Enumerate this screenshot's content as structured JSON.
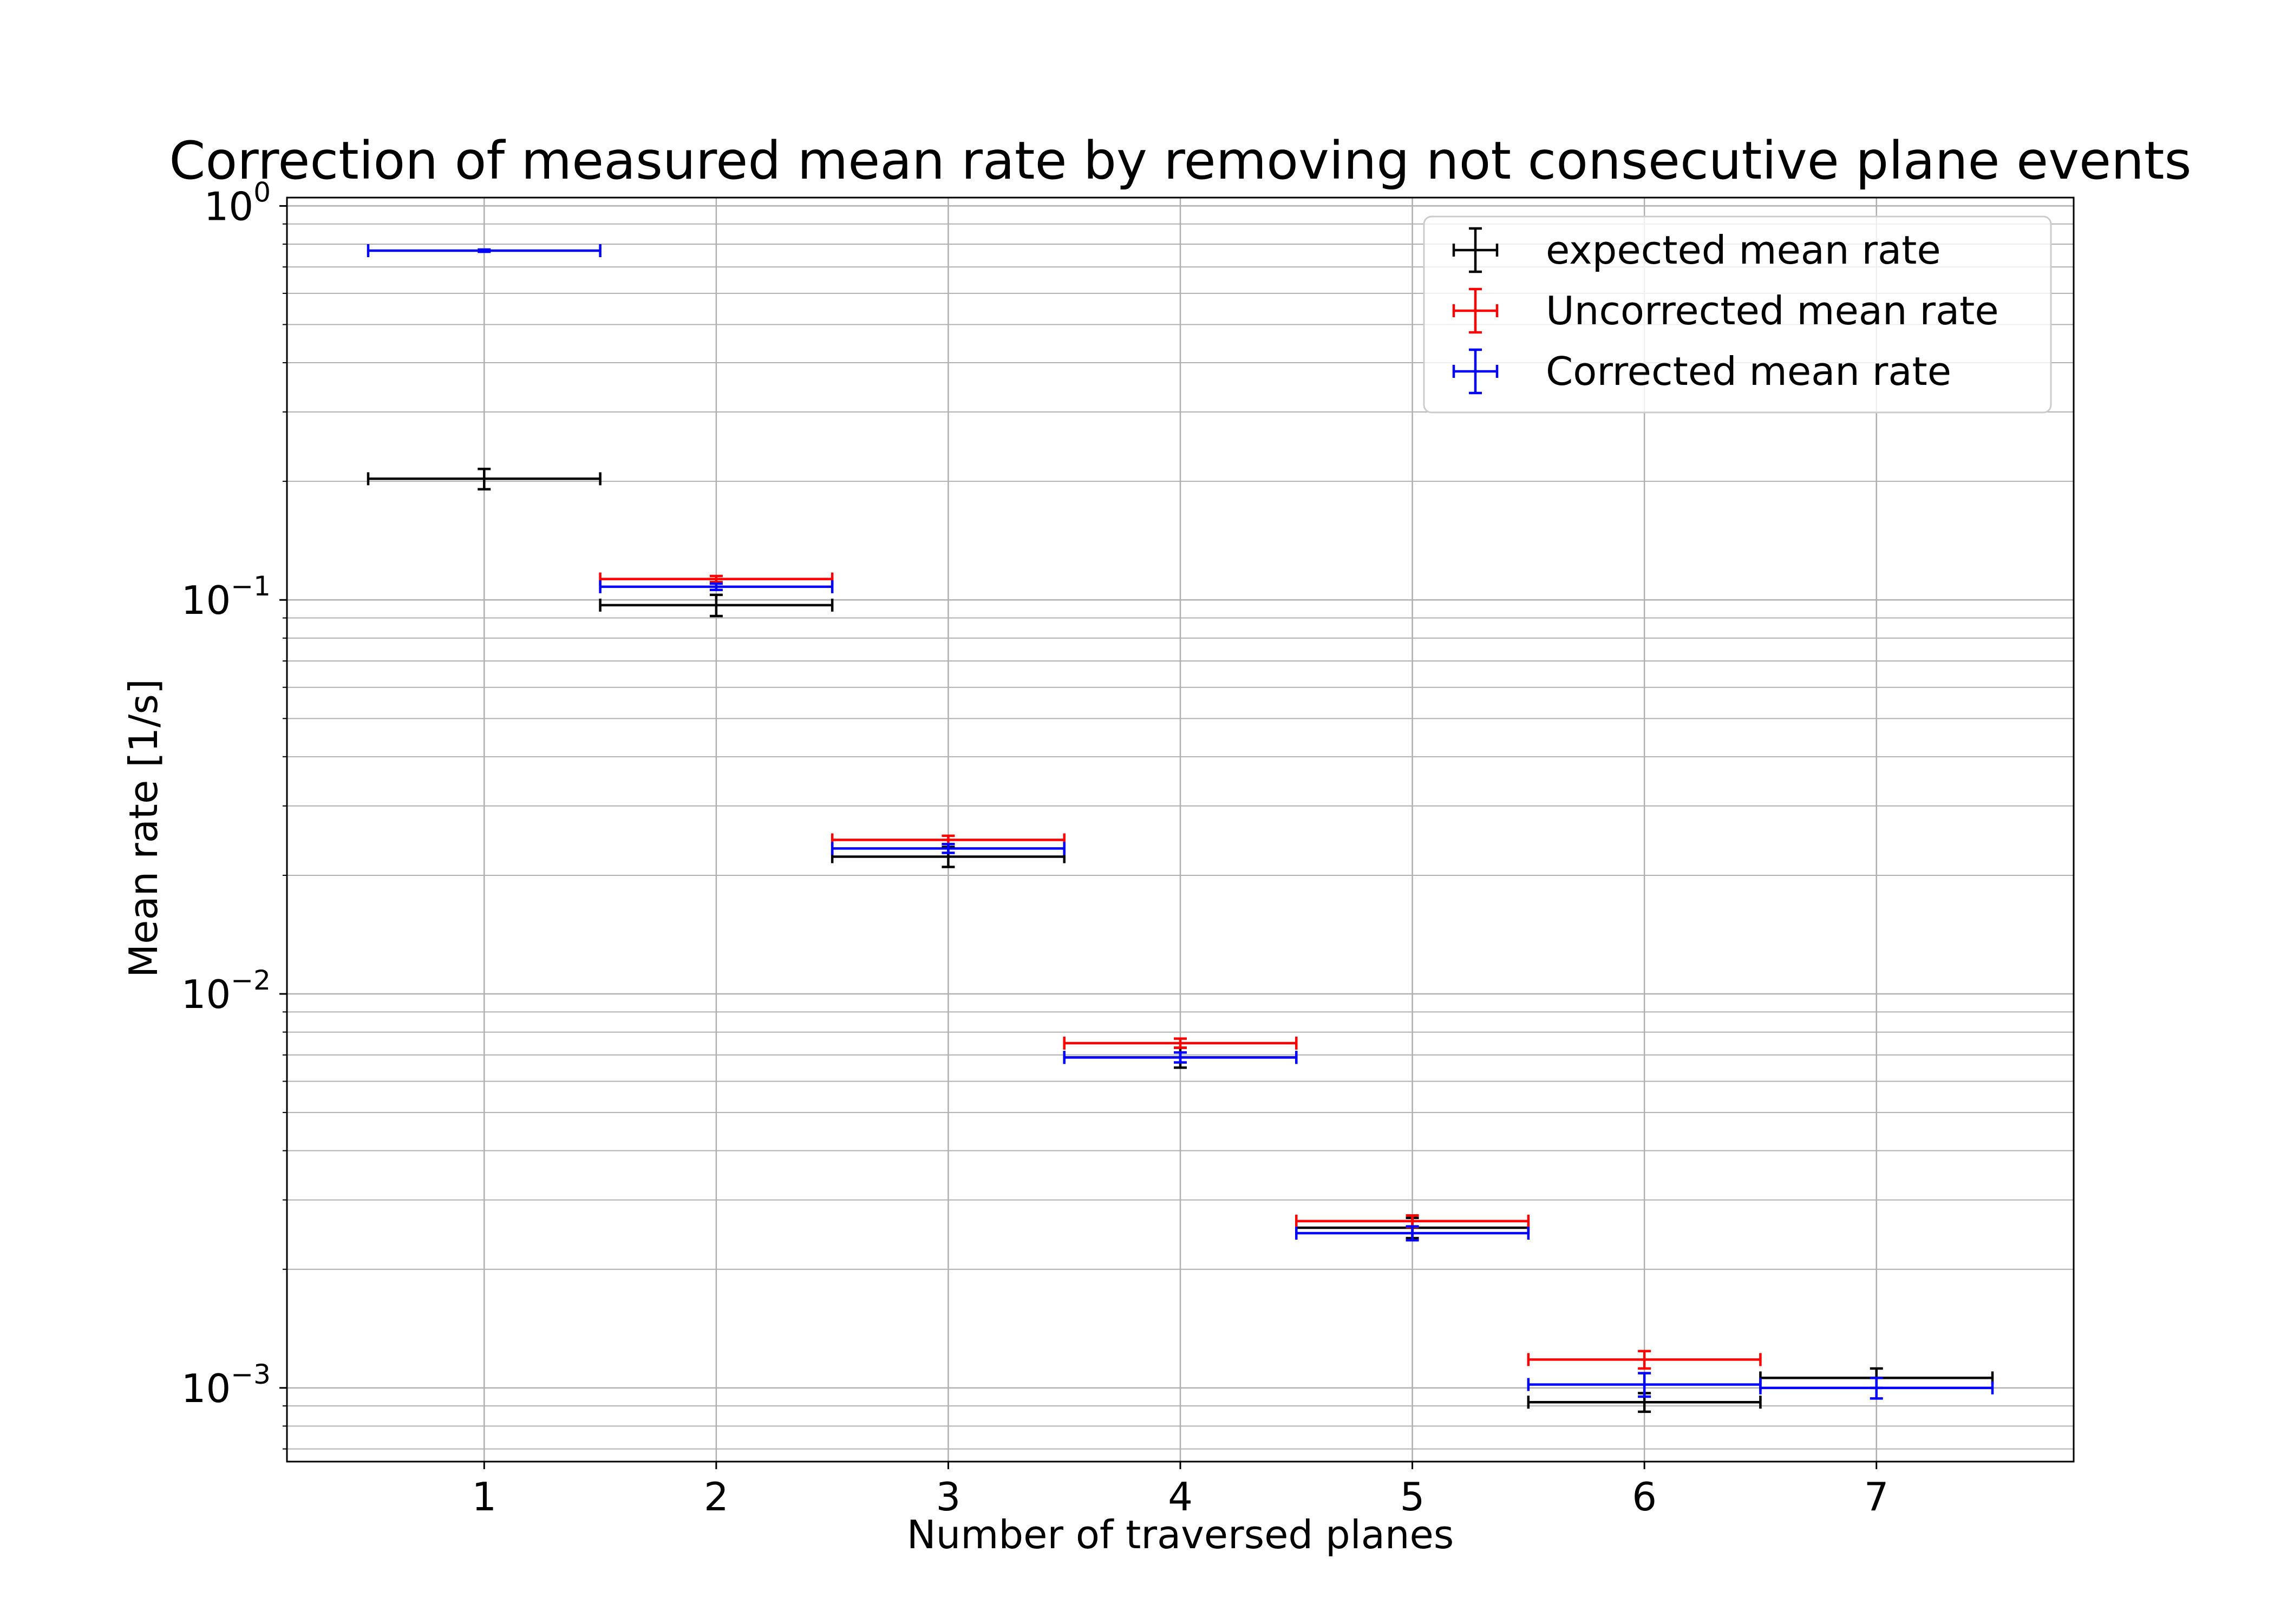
{
  "chart_data": {
    "type": "scatter",
    "title": "Correction of measured mean rate by removing not consecutive plane events",
    "xlabel": "Number of traversed planes",
    "ylabel": "Mean rate [1/s]",
    "x_ticks": [
      1,
      2,
      3,
      4,
      5,
      6,
      7
    ],
    "xlim": [
      0.15,
      7.85
    ],
    "ylim": [
      0.00065,
      1.05
    ],
    "y_scale": "log",
    "y_ticks": [
      {
        "value": 1,
        "base": "10",
        "exp": "0"
      },
      {
        "value": 0.1,
        "base": "10",
        "exp": "−1"
      },
      {
        "value": 0.01,
        "base": "10",
        "exp": "−2"
      },
      {
        "value": 0.001,
        "base": "10",
        "exp": "−3"
      }
    ],
    "grid": true,
    "legend_position": "top-right",
    "series": [
      {
        "name": "expected mean rate",
        "color": "#000000",
        "points": [
          {
            "x": 1,
            "y": 0.203,
            "xerr": 0.5,
            "ylo": 0.191,
            "yhi": 0.215
          },
          {
            "x": 2,
            "y": 0.097,
            "xerr": 0.5,
            "ylo": 0.091,
            "yhi": 0.103
          },
          {
            "x": 3,
            "y": 0.0223,
            "xerr": 0.5,
            "ylo": 0.021,
            "yhi": 0.0236
          },
          {
            "x": 4,
            "y": 0.0069,
            "xerr": 0.5,
            "ylo": 0.0065,
            "yhi": 0.0073
          },
          {
            "x": 5,
            "y": 0.00255,
            "xerr": 0.5,
            "ylo": 0.0024,
            "yhi": 0.0027
          },
          {
            "x": 6,
            "y": 0.00092,
            "xerr": 0.5,
            "ylo": 0.00087,
            "yhi": 0.00097
          },
          {
            "x": 7,
            "y": 0.00106,
            "xerr": 0.5,
            "ylo": 0.001,
            "yhi": 0.00112
          }
        ]
      },
      {
        "name": "Uncorrected mean rate",
        "color": "#ff0000",
        "points": [
          {
            "x": 2,
            "y": 0.113,
            "xerr": 0.5,
            "ylo": 0.111,
            "yhi": 0.115
          },
          {
            "x": 3,
            "y": 0.0246,
            "xerr": 0.5,
            "ylo": 0.024,
            "yhi": 0.0252
          },
          {
            "x": 4,
            "y": 0.0075,
            "xerr": 0.5,
            "ylo": 0.0073,
            "yhi": 0.0077
          },
          {
            "x": 5,
            "y": 0.00265,
            "xerr": 0.5,
            "ylo": 0.00256,
            "yhi": 0.00274
          },
          {
            "x": 6,
            "y": 0.00118,
            "xerr": 0.5,
            "ylo": 0.00112,
            "yhi": 0.00124
          }
        ]
      },
      {
        "name": "Corrected mean rate",
        "color": "#0000ff",
        "points": [
          {
            "x": 1,
            "y": 0.77,
            "xerr": 0.5,
            "ylo": 0.765,
            "yhi": 0.775
          },
          {
            "x": 2,
            "y": 0.108,
            "xerr": 0.5,
            "ylo": 0.106,
            "yhi": 0.11
          },
          {
            "x": 3,
            "y": 0.0234,
            "xerr": 0.5,
            "ylo": 0.0228,
            "yhi": 0.024
          },
          {
            "x": 4,
            "y": 0.0069,
            "xerr": 0.5,
            "ylo": 0.0067,
            "yhi": 0.0071
          },
          {
            "x": 5,
            "y": 0.00247,
            "xerr": 0.5,
            "ylo": 0.00237,
            "yhi": 0.00257
          },
          {
            "x": 6,
            "y": 0.00102,
            "xerr": 0.5,
            "ylo": 0.00095,
            "yhi": 0.00109
          },
          {
            "x": 7,
            "y": 0.001,
            "xerr": 0.5,
            "ylo": 0.00094,
            "yhi": 0.00106
          }
        ]
      }
    ]
  }
}
